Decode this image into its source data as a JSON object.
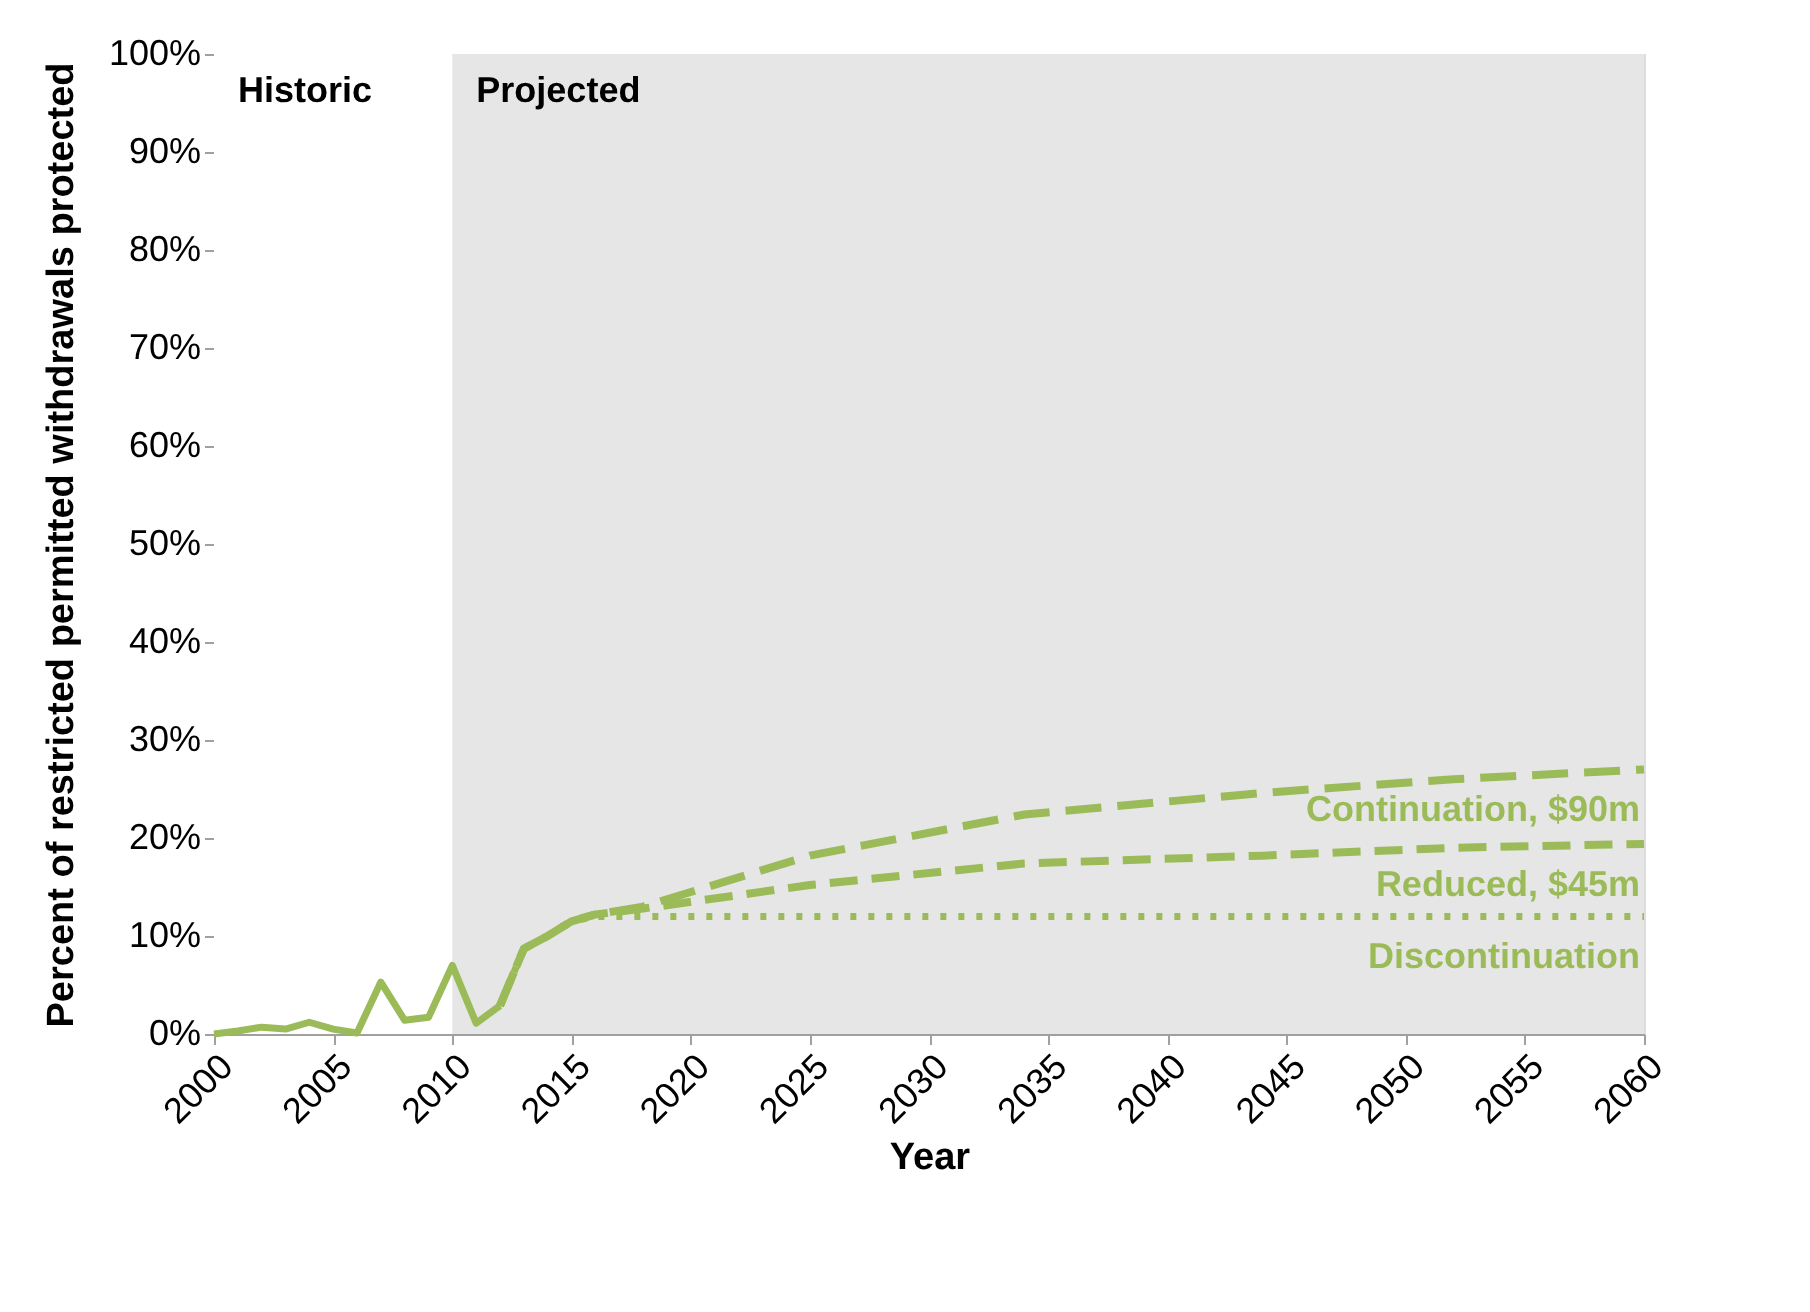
{
  "chart_data": {
    "type": "line",
    "xlabel": "Year",
    "ylabel": "Percent of restricted permitted withdrawals protected",
    "xlim": [
      2000,
      2060
    ],
    "xticks": [
      2000,
      2005,
      2010,
      2015,
      2020,
      2025,
      2030,
      2035,
      2040,
      2045,
      2050,
      2055,
      2060
    ],
    "ylim": [
      0,
      100
    ],
    "yticks": [
      {
        "value": 0,
        "label": "0%"
      },
      {
        "value": 10,
        "label": "10%"
      },
      {
        "value": 20,
        "label": "20%"
      },
      {
        "value": 30,
        "label": "30%"
      },
      {
        "value": 40,
        "label": "40%"
      },
      {
        "value": 50,
        "label": "50%"
      },
      {
        "value": 60,
        "label": "60%"
      },
      {
        "value": 70,
        "label": "70%"
      },
      {
        "value": 80,
        "label": "80%"
      },
      {
        "value": 90,
        "label": "90%"
      },
      {
        "value": 100,
        "label": "100%"
      }
    ],
    "grid": false,
    "marker": "none",
    "bands": [
      {
        "axis": "x",
        "from": 2000,
        "to": 2010,
        "label": "Historic",
        "color": "#ffffff"
      },
      {
        "axis": "x",
        "from": 2010,
        "to": 2060,
        "label": "Projected",
        "color": "#e6e6e6"
      }
    ],
    "series": [
      {
        "color": "#9bbb59",
        "line_style": "solid",
        "x": [
          2000,
          2001,
          2002,
          2003,
          2004,
          2005,
          2006,
          2007,
          2008,
          2009,
          2010,
          2011,
          2012
        ],
        "values": [
          0,
          0.3,
          0.7,
          0.5,
          1.2,
          0.5,
          0.1,
          5.3,
          1.4,
          1.7,
          7.0,
          1.1,
          2.9
        ]
      },
      {
        "name": "Continuation, $90m",
        "color": "#9bbb59",
        "line_style": "dashed",
        "x": [
          2012,
          2013,
          2014,
          2015,
          2016,
          2018,
          2025,
          2034,
          2044,
          2052,
          2060
        ],
        "values": [
          2.9,
          8.7,
          10,
          11.5,
          12.2,
          13,
          18.2,
          22.4,
          24.6,
          26,
          27
        ]
      },
      {
        "name": "Reduced, $45m",
        "color": "#9bbb59",
        "line_style": "dashed",
        "x": [
          2012,
          2013,
          2014,
          2015,
          2016,
          2018,
          2025,
          2034,
          2044,
          2052,
          2060
        ],
        "values": [
          2.9,
          8.7,
          10,
          11.5,
          12.2,
          12.8,
          15.2,
          17.4,
          18.2,
          19,
          19.4
        ]
      },
      {
        "name": "Discontinuation",
        "color": "#9bbb59",
        "line_style": "dotted",
        "x": [
          2012,
          2013,
          2014,
          2015,
          2016,
          2060
        ],
        "values": [
          2.9,
          8.7,
          10,
          11.5,
          12,
          12
        ]
      }
    ]
  }
}
